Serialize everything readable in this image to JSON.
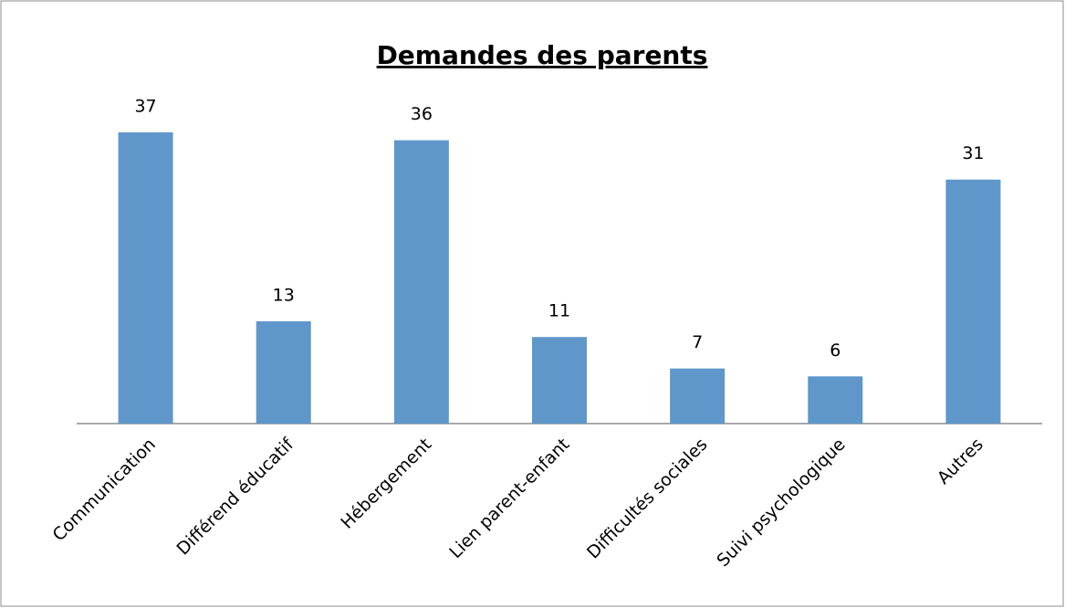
{
  "chart_data": {
    "type": "bar",
    "title": "Demandes des parents",
    "categories": [
      "Communication",
      "Différend éducatif",
      "Hébergement",
      "Lien parent-enfant",
      "Difficultés sociales",
      "Suivi psychologique",
      "Autres"
    ],
    "values": [
      37,
      13,
      36,
      11,
      7,
      6,
      31
    ],
    "color": "#5f97ca"
  }
}
